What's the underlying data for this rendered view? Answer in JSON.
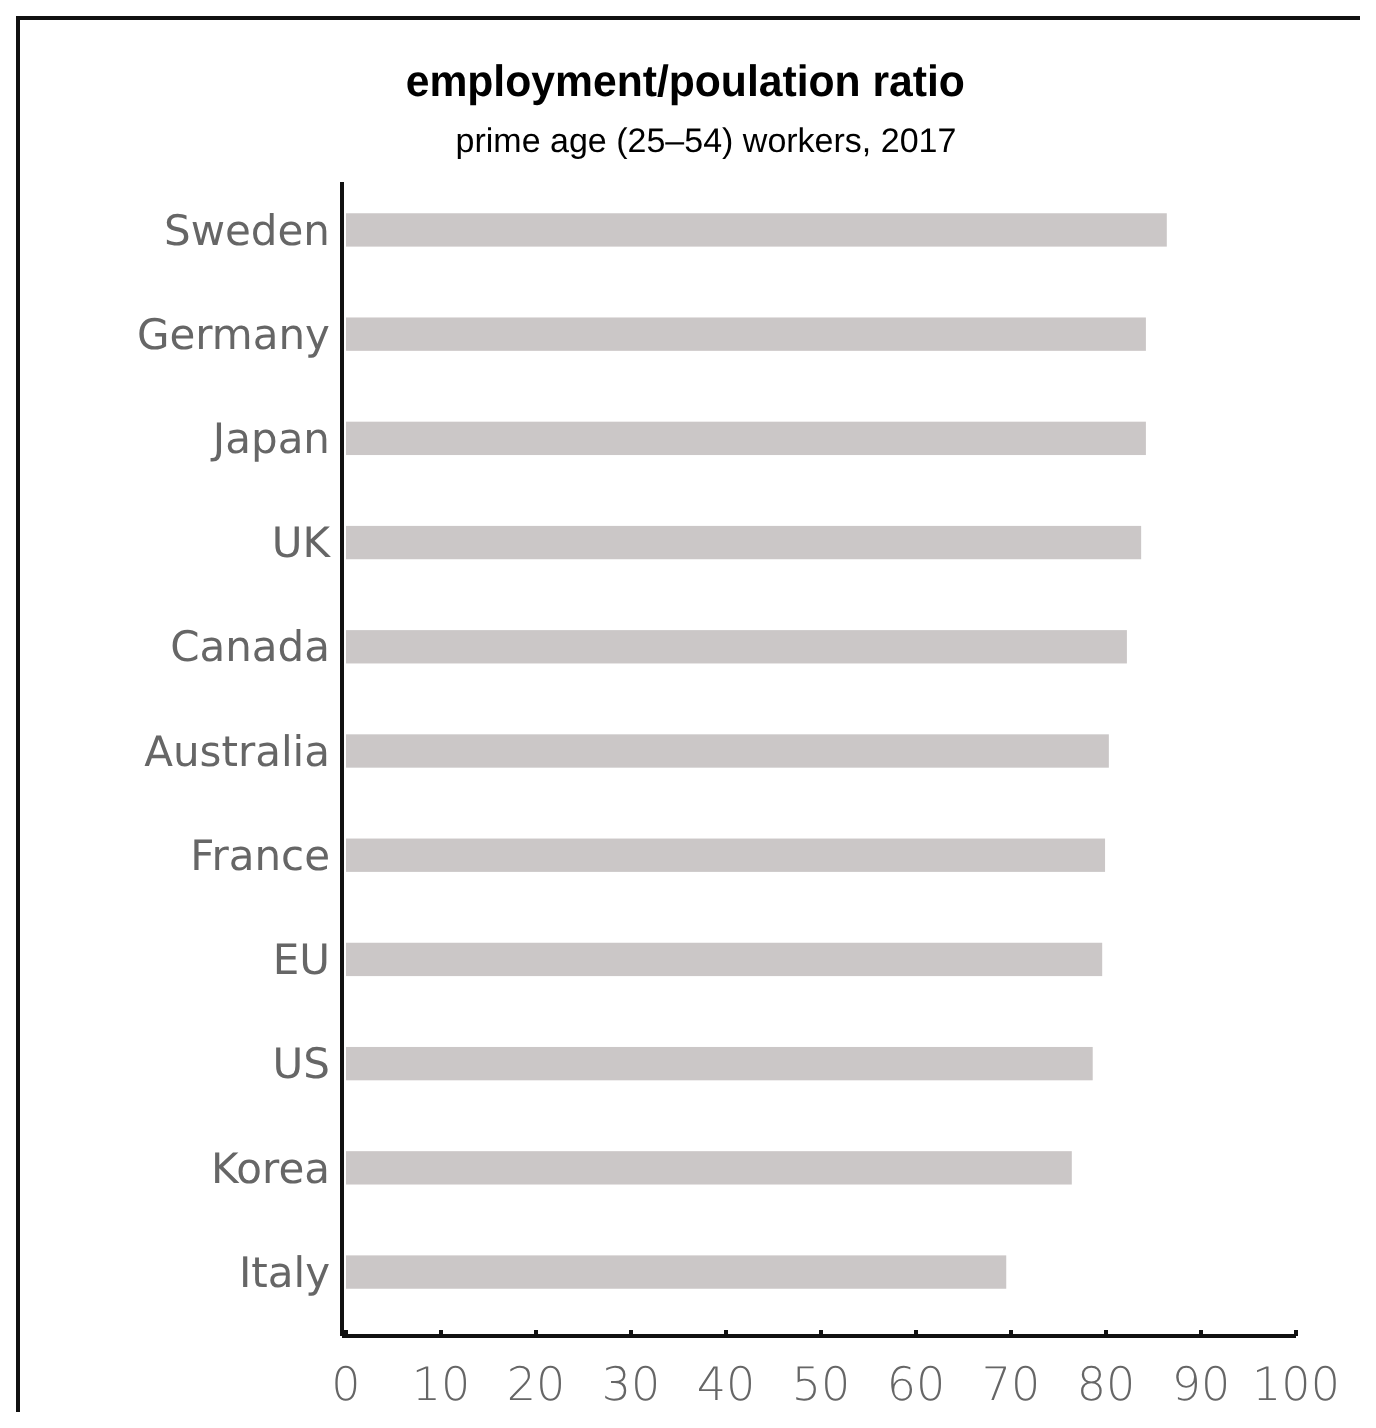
{
  "chart_data": {
    "type": "bar",
    "orientation": "horizontal",
    "title": "employment/poulation ratio",
    "subtitle": "prime age (25–54) workers, 2017",
    "categories": [
      "Sweden",
      "Germany",
      "Japan",
      "UK",
      "Canada",
      "Australia",
      "France",
      "EU",
      "US",
      "Korea",
      "Italy"
    ],
    "values": [
      86.4,
      84.2,
      84.2,
      83.7,
      82.2,
      80.3,
      79.9,
      79.6,
      78.6,
      76.4,
      69.5
    ],
    "color": "#cbc7c7",
    "xlim": [
      0,
      100
    ],
    "xticks": [
      0,
      10,
      20,
      30,
      40,
      50,
      60,
      70,
      80,
      90,
      100
    ]
  }
}
